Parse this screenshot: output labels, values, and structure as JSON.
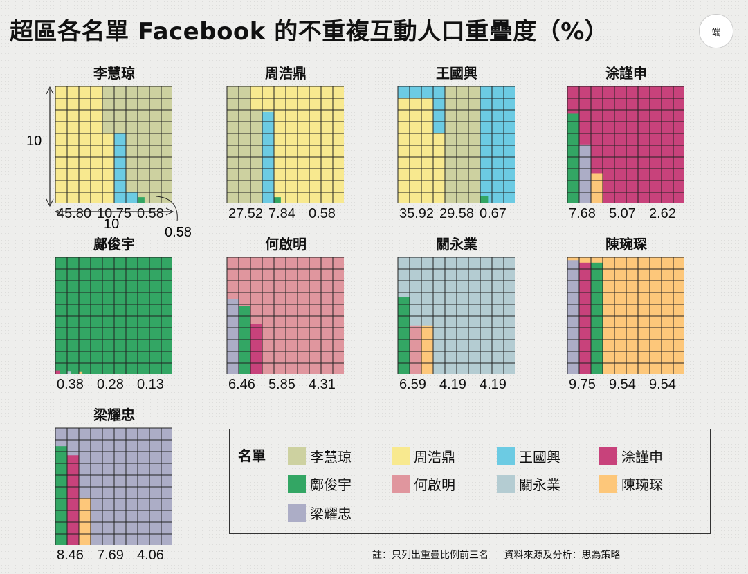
{
  "title": "超區各名單 Facebook 的不重複互動人口重疊度（%）",
  "logo_text": "端",
  "colors": {
    "李慧琼": "#cdd1a0",
    "周浩鼎": "#f8e98f",
    "王國興": "#6ccbe3",
    "涂謹申": "#c8427b",
    "鄺俊宇": "#33a664",
    "何啟明": "#e0969e",
    "關永業": "#b4ccd2",
    "陳琬琛": "#fdc77a",
    "梁耀忠": "#acadc6"
  },
  "chart_data": [
    {
      "type": "waffle",
      "name": "李慧琼",
      "base": "李慧琼",
      "overlaps": [
        {
          "name": "周浩鼎",
          "value": 45.8
        },
        {
          "name": "王國興",
          "value": 10.75
        },
        {
          "name": "鄺俊宇",
          "value": 0.58
        }
      ]
    },
    {
      "type": "waffle",
      "name": "周浩鼎",
      "base": "周浩鼎",
      "overlaps": [
        {
          "name": "李慧琼",
          "value": 27.52
        },
        {
          "name": "王國興",
          "value": 7.84
        },
        {
          "name": "鄺俊宇",
          "value": 0.58
        }
      ]
    },
    {
      "type": "waffle",
      "name": "王國興",
      "base": "王國興",
      "overlaps": [
        {
          "name": "周浩鼎",
          "value": 35.92
        },
        {
          "name": "李慧琼",
          "value": 29.58
        },
        {
          "name": "鄺俊宇",
          "value": 0.67
        }
      ]
    },
    {
      "type": "waffle",
      "name": "涂謹申",
      "base": "涂謹申",
      "overlaps": [
        {
          "name": "鄺俊宇",
          "value": 7.68
        },
        {
          "name": "梁耀忠",
          "value": 5.07
        },
        {
          "name": "陳琬琛",
          "value": 2.62
        }
      ]
    },
    {
      "type": "waffle",
      "name": "鄺俊宇",
      "base": "鄺俊宇",
      "overlaps": [
        {
          "name": "涂謹申",
          "value": 0.38
        },
        {
          "name": "關永業",
          "value": 0.28
        },
        {
          "name": "陳琬琛",
          "value": 0.13
        }
      ]
    },
    {
      "type": "waffle",
      "name": "何啟明",
      "base": "何啟明",
      "overlaps": [
        {
          "name": "梁耀忠",
          "value": 6.46
        },
        {
          "name": "鄺俊宇",
          "value": 5.85
        },
        {
          "name": "涂謹申",
          "value": 4.31
        }
      ]
    },
    {
      "type": "waffle",
      "name": "關永業",
      "base": "關永業",
      "overlaps": [
        {
          "name": "鄺俊宇",
          "value": 6.59
        },
        {
          "name": "何啟明",
          "value": 4.19
        },
        {
          "name": "陳琬琛",
          "value": 4.19
        }
      ]
    },
    {
      "type": "waffle",
      "name": "陳琬琛",
      "base": "陳琬琛",
      "overlaps": [
        {
          "name": "梁耀忠",
          "value": 9.75
        },
        {
          "name": "涂謹申",
          "value": 9.54
        },
        {
          "name": "鄺俊宇",
          "value": 9.54
        }
      ]
    },
    {
      "type": "waffle",
      "name": "梁耀忠",
      "base": "梁耀忠",
      "overlaps": [
        {
          "name": "鄺俊宇",
          "value": 8.46
        },
        {
          "name": "涂謹申",
          "value": 7.69
        },
        {
          "name": "陳琬琛",
          "value": 4.06
        }
      ]
    }
  ],
  "axis_example": {
    "rows": "10",
    "cols": "10",
    "note_value": "0.58"
  },
  "legend": {
    "title": "名單",
    "items": [
      "李慧琼",
      "周浩鼎",
      "王國興",
      "涂謹申",
      "鄺俊宇",
      "何啟明",
      "關永業",
      "陳琬琛",
      "梁耀忠"
    ]
  },
  "notes": {
    "left": "註：只列出重疊比例前三名",
    "right": "資料來源及分析：思為策略"
  }
}
